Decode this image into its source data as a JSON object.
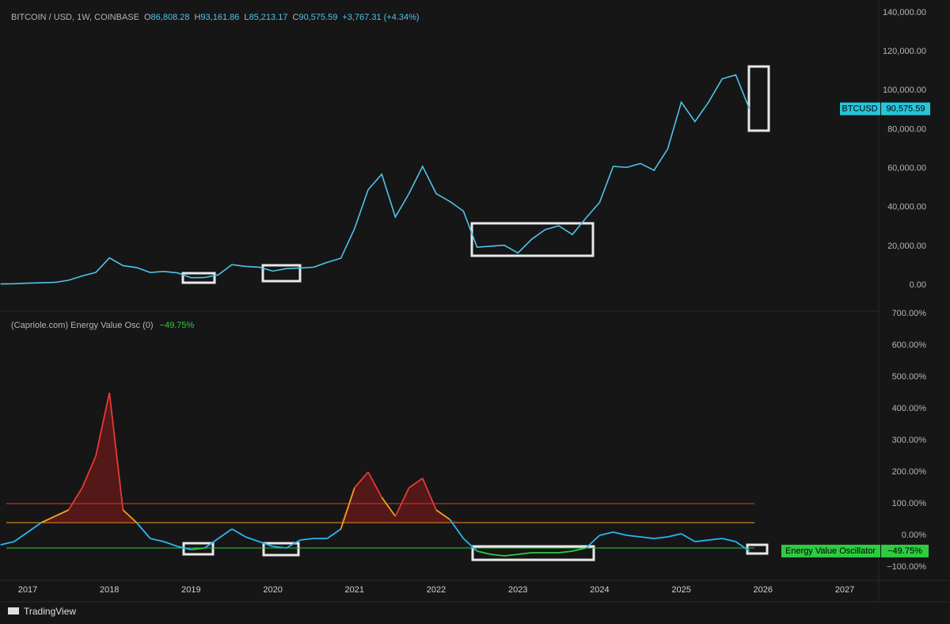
{
  "chart_data": [
    {
      "type": "line",
      "header": {
        "symbol": "BITCOIN / USD, 1W, COINBASE",
        "o": "O",
        "open": "86,808.28",
        "h": "H",
        "high": "93,161.86",
        "l": "L",
        "low": "85,213.17",
        "c": "C",
        "close": "90,575.59",
        "change": "+3,767.31 (+4.34%)"
      },
      "last_tag": {
        "name": "BTCUSD",
        "value": "90,575.59"
      },
      "color": "#4fc3e8",
      "values": [
        600,
        700,
        1000,
        1200,
        1400,
        2500,
        4700,
        6500,
        14000,
        10000,
        9000,
        6500,
        7000,
        6300,
        3800,
        3900,
        5300,
        10500,
        9600,
        9200,
        7200,
        8500,
        8800,
        9200,
        11700,
        13800,
        29000,
        49000,
        57000,
        35000,
        47000,
        61000,
        47000,
        43000,
        38000,
        19500,
        20000,
        20500,
        16500,
        23500,
        28500,
        30500,
        26000,
        34500,
        42500,
        61000,
        60500,
        62500,
        59000,
        70000,
        94000,
        84000,
        94000,
        106000,
        108000,
        90575.59,
        null,
        null,
        null,
        null,
        null,
        null,
        null
      ],
      "ylim": [
        -13000,
        146500
      ],
      "yticks": [
        {
          "value": 0,
          "label": "0.00"
        },
        {
          "value": 20000,
          "label": "20,000.00"
        },
        {
          "value": 40000,
          "label": "40,000.00"
        },
        {
          "value": 60000,
          "label": "60,000.00"
        },
        {
          "value": 80000,
          "label": "80,000.00"
        },
        {
          "value": 100000,
          "label": "100,000.00"
        },
        {
          "value": 120000,
          "label": "120,000.00"
        },
        {
          "value": 140000,
          "label": "140,000.00"
        }
      ]
    },
    {
      "type": "line",
      "title": "(Capriole.com) Energy Value Osc (0)",
      "last_value_label": "−49.75%",
      "categories": [
        null,
        null,
        "2017",
        null,
        null,
        null,
        null,
        null,
        "2018",
        null,
        null,
        null,
        null,
        null,
        "2019",
        null,
        null,
        null,
        null,
        null,
        "2020",
        null,
        null,
        null,
        null,
        null,
        "2021",
        null,
        null,
        null,
        null,
        null,
        "2022",
        null,
        null,
        null,
        null,
        null,
        "2023",
        null,
        null,
        null,
        null,
        null,
        "2024",
        null,
        null,
        null,
        null,
        null,
        "2025",
        null,
        null,
        null,
        null,
        null,
        "2026",
        null,
        null,
        null,
        null,
        null,
        "2027"
      ],
      "series": [
        {
          "name": "Energy Value Oscillator",
          "color": "#29b6f6",
          "values": [
            -30,
            -20,
            10,
            40,
            60,
            80,
            150,
            250,
            450,
            80,
            40,
            -10,
            -20,
            -35,
            -45,
            -40,
            -10,
            20,
            -5,
            -20,
            -35,
            -40,
            -15,
            -10,
            -10,
            20,
            150,
            200,
            120,
            60,
            150,
            180,
            80,
            50,
            -10,
            -50,
            -60,
            -65,
            -60,
            -55,
            -55,
            -55,
            -50,
            -40,
            0,
            10,
            0,
            -5,
            -10,
            -5,
            5,
            -20,
            -15,
            -10,
            -20,
            -49.75,
            null,
            null,
            null,
            null,
            null,
            null,
            null
          ]
        }
      ],
      "levels": [
        {
          "value": 100,
          "color": "#e53935"
        },
        {
          "value": 40,
          "color": "#f0a020"
        },
        {
          "value": -40,
          "color": "#2ecc40"
        }
      ],
      "ylim": [
        -150,
        700
      ],
      "yticks": [
        {
          "value": -100,
          "label": "−100.00%"
        },
        {
          "value": 0,
          "label": "0.00%"
        },
        {
          "value": 100,
          "label": "100.00%"
        },
        {
          "value": 200,
          "label": "200.00%"
        },
        {
          "value": 300,
          "label": "300.00%"
        },
        {
          "value": 400,
          "label": "400.00%"
        },
        {
          "value": 500,
          "label": "500.00%"
        },
        {
          "value": 600,
          "label": "600.00%"
        },
        {
          "value": 700,
          "label": "700.00%"
        }
      ]
    }
  ],
  "footer": {
    "brand": "TradingView"
  }
}
